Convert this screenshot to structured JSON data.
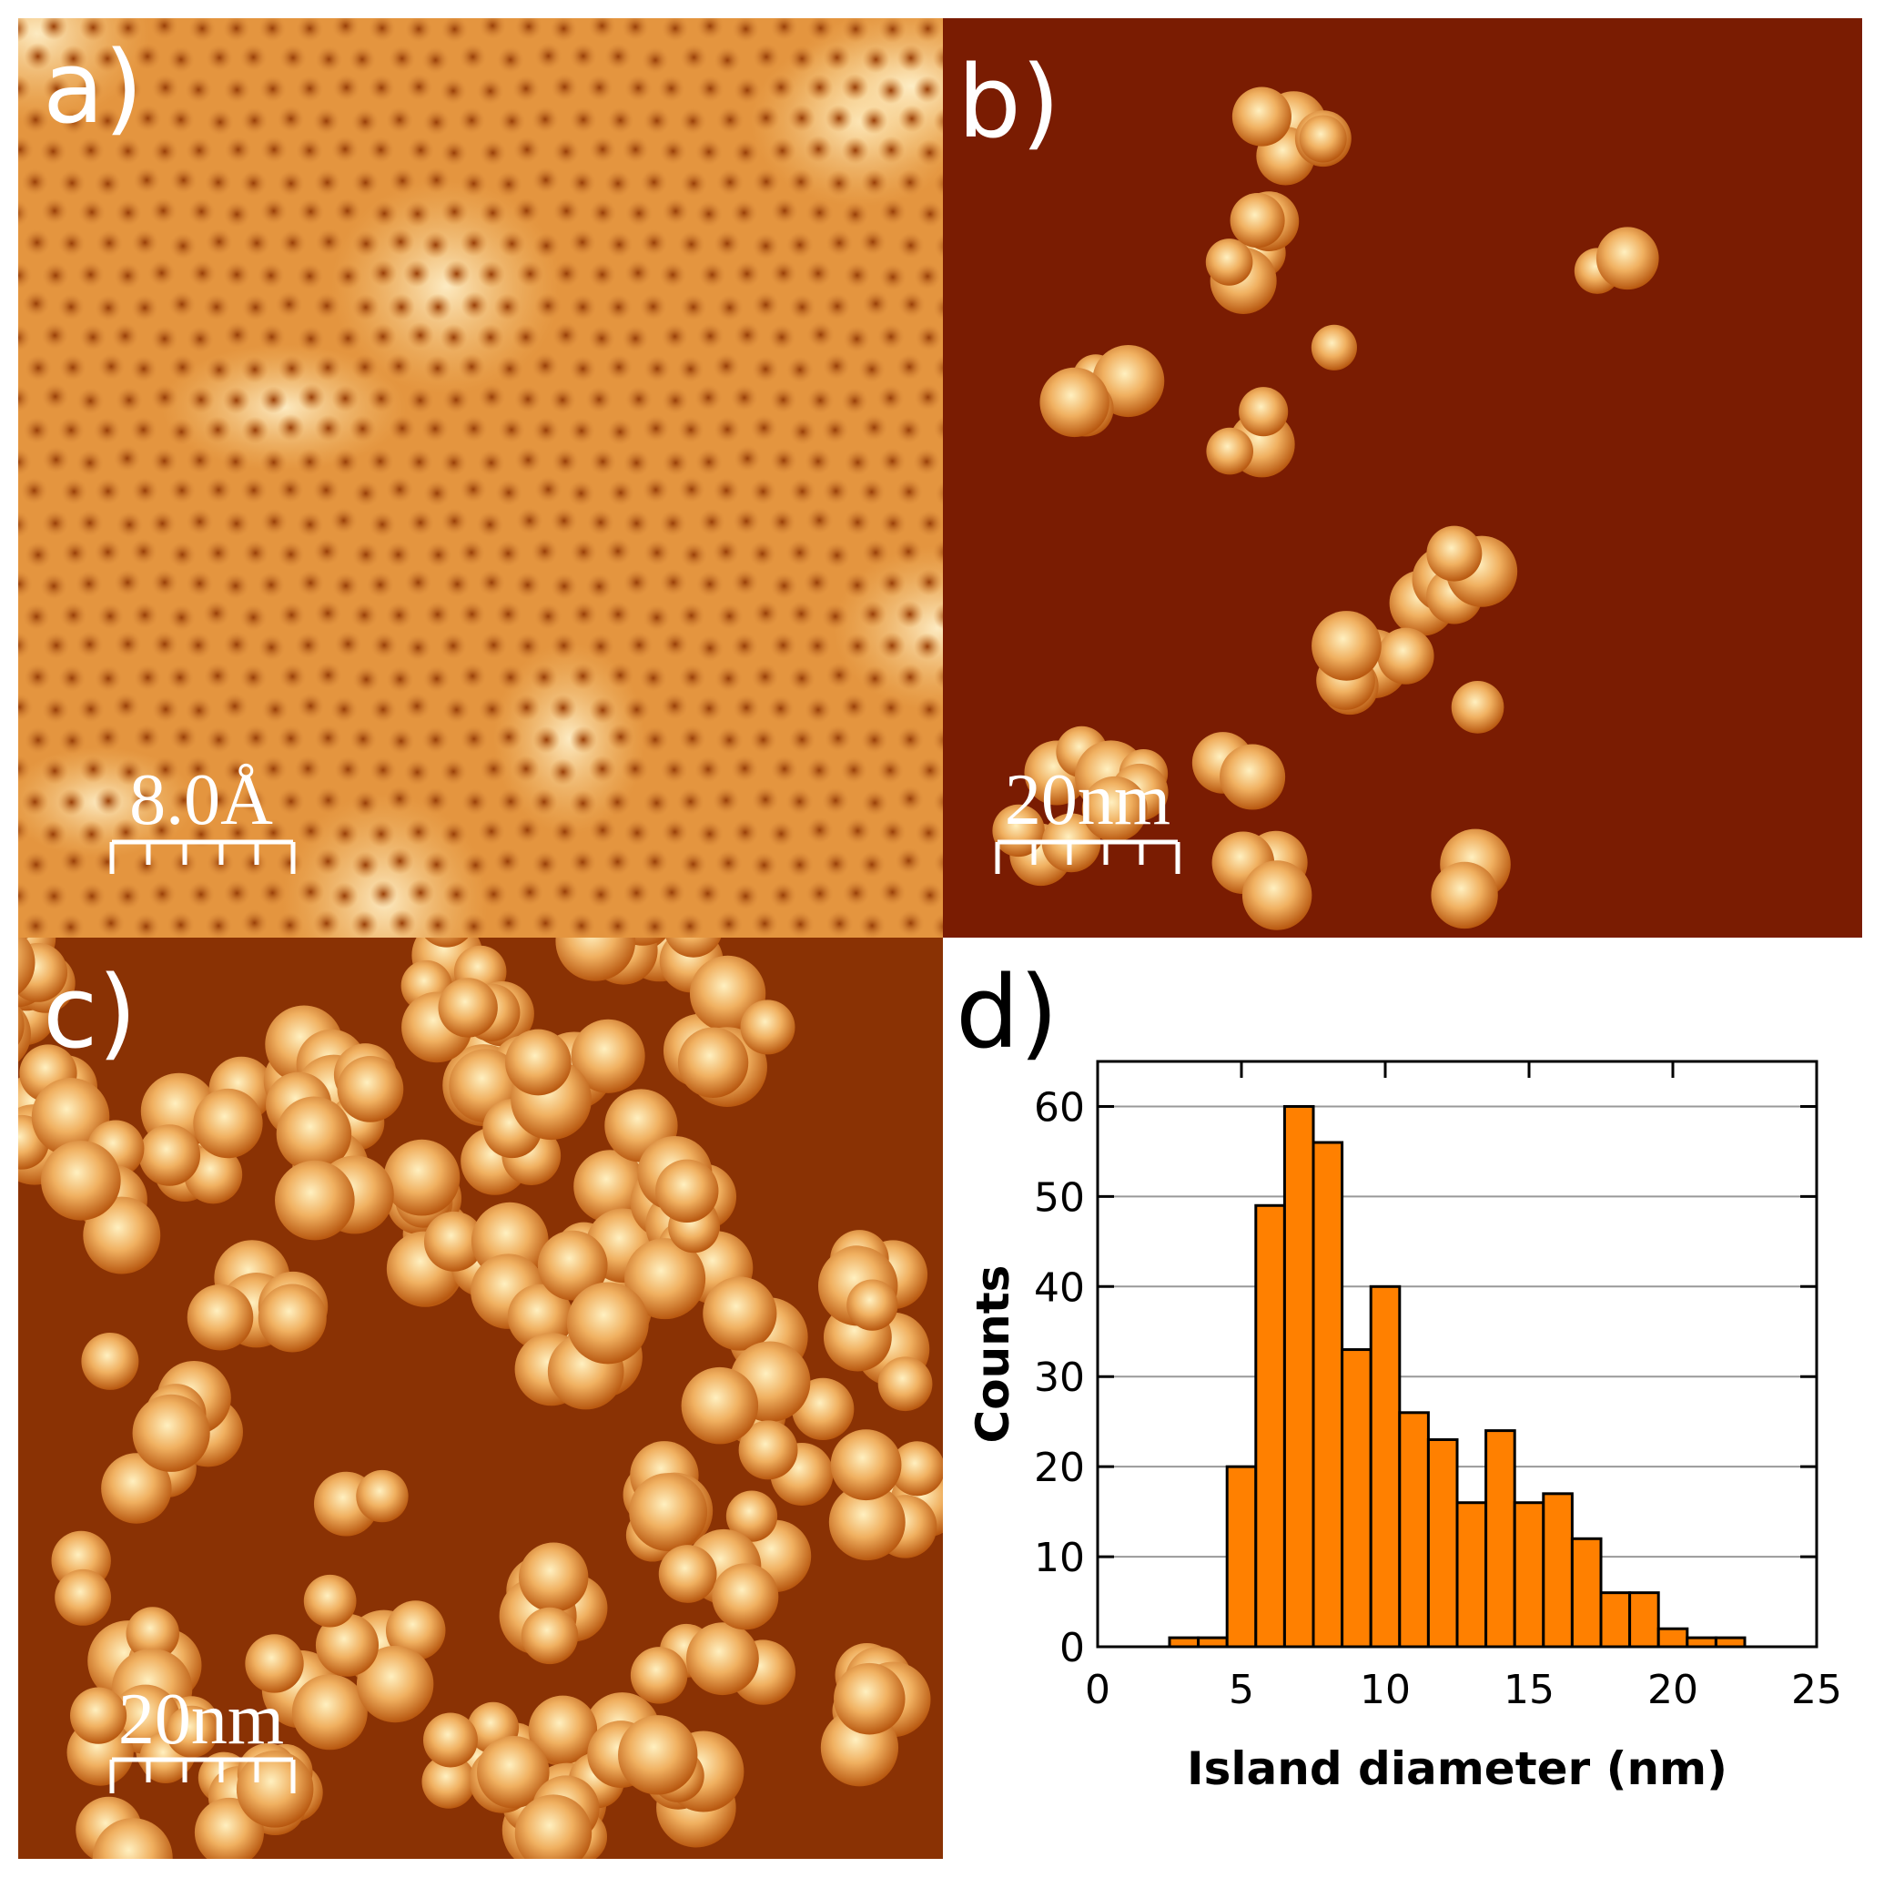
{
  "panels": {
    "a": {
      "label": "a)",
      "scale_bar": "8.0Å"
    },
    "b": {
      "label": "b)",
      "scale_bar": "20nm"
    },
    "c": {
      "label": "c)",
      "scale_bar": "20nm"
    },
    "d": {
      "label": "d)"
    }
  },
  "chart_data": {
    "type": "histogram",
    "xlabel": "Island diameter (nm)",
    "ylabel": "Counts",
    "bins": [
      2.5,
      3.5,
      4.5,
      5.5,
      6.5,
      7.5,
      8.5,
      9.5,
      10.5,
      11.5,
      12.5,
      13.5,
      14.5,
      15.5,
      16.5,
      17.5,
      18.5,
      19.5,
      20.5,
      21.5,
      22.5
    ],
    "values": [
      1,
      1,
      20,
      49,
      60,
      56,
      33,
      40,
      26,
      23,
      16,
      24,
      16,
      17,
      12,
      6,
      6,
      2,
      1,
      1
    ],
    "color": "#ff8000",
    "xlim": [
      0,
      25
    ],
    "xticks": [
      0,
      5,
      10,
      15,
      20,
      25
    ],
    "ylim": [
      0,
      65
    ],
    "yticks": [
      0,
      10,
      20,
      30,
      40,
      50,
      60
    ],
    "grid": true
  }
}
